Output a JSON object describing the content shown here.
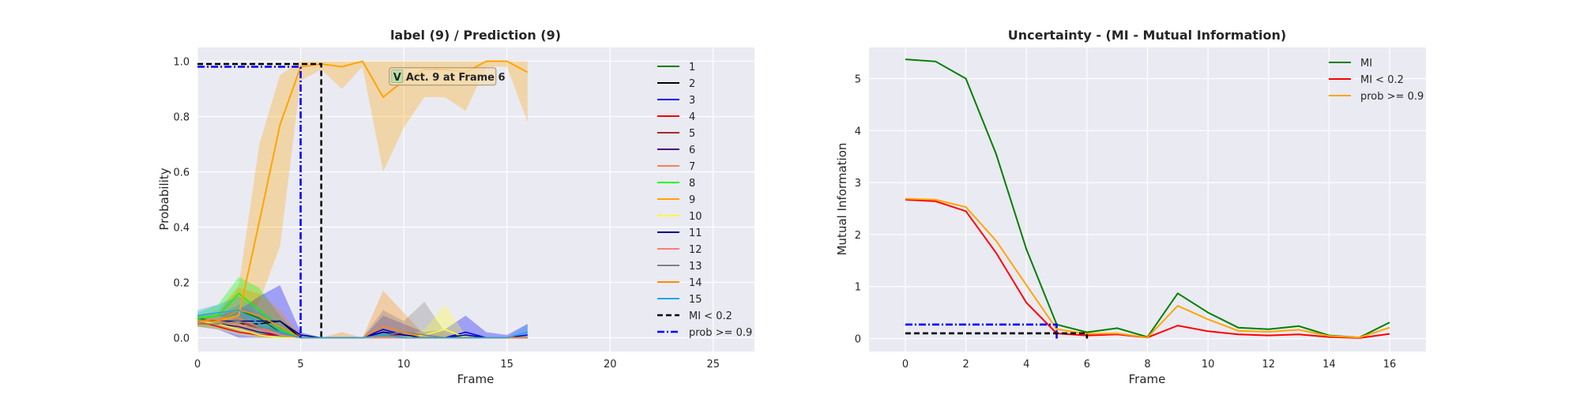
{
  "chart_data": [
    {
      "type": "line",
      "title": "label (9) / Prediction (9)",
      "xlabel": "Frame",
      "ylabel": "Probability",
      "xlim": [
        0,
        27
      ],
      "ylim": [
        -0.05,
        1.05
      ],
      "xticks": [
        "0",
        "5",
        "10",
        "15",
        "20",
        "25"
      ],
      "yticks": [
        "0.0",
        "0.2",
        "0.4",
        "0.6",
        "0.8",
        "1.0"
      ],
      "grid": true,
      "legend": "right",
      "annotation": {
        "badge": "V",
        "text": "Act. 9 at Frame 6",
        "x": 9.3,
        "y": 0.945
      },
      "x": [
        0,
        1,
        2,
        3,
        4,
        5,
        6,
        7,
        8,
        9,
        10,
        11,
        12,
        13,
        14,
        15,
        16
      ],
      "series": [
        {
          "name": "1",
          "color": "#008000",
          "values": [
            0.07,
            0.06,
            0.1,
            0.07,
            0.02,
            0.0,
            0.0,
            0.0,
            0.0,
            0.01,
            0.0,
            0.0,
            0.0,
            0.0,
            0.0,
            0.0,
            0.0
          ]
        },
        {
          "name": "2",
          "color": "#000000",
          "values": [
            0.06,
            0.06,
            0.05,
            0.05,
            0.06,
            0.0,
            0.0,
            0.0,
            0.0,
            0.02,
            0.01,
            0.0,
            0.0,
            0.0,
            0.0,
            0.0,
            0.0
          ]
        },
        {
          "name": "3",
          "color": "#0000ff",
          "values": [
            0.06,
            0.05,
            0.03,
            0.01,
            0.01,
            0.0,
            0.0,
            0.0,
            0.0,
            0.03,
            0.01,
            0.0,
            0.0,
            0.02,
            0.0,
            0.0,
            0.01
          ]
        },
        {
          "name": "4",
          "color": "#ff0000",
          "values": [
            0.06,
            0.04,
            0.02,
            0.01,
            0.01,
            0.0,
            0.0,
            0.0,
            0.0,
            0.0,
            0.0,
            0.0,
            0.0,
            0.0,
            0.0,
            0.0,
            0.0
          ]
        },
        {
          "name": "5",
          "color": "#a52a2a",
          "values": [
            0.06,
            0.05,
            0.06,
            0.03,
            0.01,
            0.0,
            0.0,
            0.0,
            0.0,
            0.01,
            0.01,
            0.0,
            0.0,
            0.0,
            0.0,
            0.0,
            0.0
          ]
        },
        {
          "name": "6",
          "color": "#4b0082",
          "values": [
            0.06,
            0.05,
            0.04,
            0.02,
            0.01,
            0.0,
            0.0,
            0.0,
            0.0,
            0.0,
            0.0,
            0.0,
            0.0,
            0.0,
            0.0,
            0.0,
            0.0
          ]
        },
        {
          "name": "7",
          "color": "#ff7f50",
          "values": [
            0.06,
            0.07,
            0.07,
            0.04,
            0.01,
            0.0,
            0.0,
            0.0,
            0.0,
            0.0,
            0.0,
            0.0,
            0.0,
            0.0,
            0.0,
            0.0,
            0.0
          ]
        },
        {
          "name": "8",
          "color": "#00ff00",
          "values": [
            0.07,
            0.08,
            0.16,
            0.1,
            0.03,
            0.0,
            0.0,
            0.0,
            0.0,
            0.01,
            0.0,
            0.0,
            0.0,
            0.0,
            0.0,
            0.0,
            0.0
          ]
        },
        {
          "name": "9",
          "color": "#ffa500",
          "values": [
            0.06,
            0.06,
            0.08,
            0.42,
            0.77,
            0.98,
            0.99,
            0.98,
            1.0,
            0.87,
            0.93,
            0.97,
            0.97,
            0.96,
            1.0,
            1.0,
            0.96
          ]
        },
        {
          "name": "10",
          "color": "#ffff33",
          "values": [
            0.06,
            0.05,
            0.03,
            0.01,
            0.0,
            0.0,
            0.0,
            0.0,
            0.0,
            0.0,
            0.0,
            0.01,
            0.03,
            0.0,
            0.0,
            0.0,
            0.0
          ]
        },
        {
          "name": "11",
          "color": "#00008b",
          "values": [
            0.06,
            0.06,
            0.06,
            0.06,
            0.06,
            0.01,
            0.0,
            0.0,
            0.0,
            0.02,
            0.01,
            0.0,
            0.0,
            0.01,
            0.0,
            0.0,
            0.0
          ]
        },
        {
          "name": "12",
          "color": "#fa8072",
          "values": [
            0.06,
            0.06,
            0.05,
            0.03,
            0.01,
            0.0,
            0.0,
            0.0,
            0.0,
            0.0,
            0.0,
            0.0,
            0.0,
            0.0,
            0.0,
            0.0,
            0.0
          ]
        },
        {
          "name": "13",
          "color": "#808080",
          "values": [
            0.05,
            0.05,
            0.06,
            0.04,
            0.02,
            0.0,
            0.0,
            0.0,
            0.0,
            0.01,
            0.02,
            0.01,
            0.0,
            0.0,
            0.0,
            0.0,
            0.0
          ]
        },
        {
          "name": "14",
          "color": "#ff8c00",
          "values": [
            0.06,
            0.06,
            0.1,
            0.08,
            0.04,
            0.0,
            0.0,
            0.0,
            0.0,
            0.04,
            0.02,
            0.0,
            0.0,
            0.0,
            0.0,
            0.0,
            0.0
          ]
        },
        {
          "name": "15",
          "color": "#1ea7e6",
          "values": [
            0.08,
            0.09,
            0.1,
            0.05,
            0.02,
            0.0,
            0.0,
            0.0,
            0.0,
            0.01,
            0.0,
            0.0,
            0.0,
            0.0,
            0.0,
            0.0,
            0.02
          ]
        }
      ],
      "bands": [
        {
          "series": "9",
          "lower": [
            0.04,
            0.04,
            0.02,
            0.13,
            0.33,
            0.93,
            0.97,
            0.9,
            0.98,
            0.6,
            0.76,
            0.87,
            0.87,
            0.82,
            0.98,
            0.98,
            0.78
          ],
          "upper": [
            0.08,
            0.1,
            0.19,
            0.7,
            0.95,
            1.0,
            1.0,
            1.0,
            1.0,
            1.0,
            1.0,
            1.0,
            1.0,
            1.0,
            1.0,
            1.0,
            1.0
          ]
        },
        {
          "series": "8",
          "lower": [
            0.05,
            0.04,
            0.05,
            0.02,
            0.0,
            0.0,
            0.0,
            0.0,
            0.0,
            0.0,
            0.0,
            0.0,
            0.0,
            0.0,
            0.0,
            0.0,
            0.0
          ],
          "upper": [
            0.09,
            0.12,
            0.22,
            0.18,
            0.08,
            0.0,
            0.0,
            0.0,
            0.0,
            0.02,
            0.0,
            0.0,
            0.0,
            0.0,
            0.0,
            0.0,
            0.0
          ]
        },
        {
          "series": "3",
          "lower": [
            0.04,
            0.03,
            0.0,
            0.0,
            0.0,
            0.0,
            0.0,
            0.0,
            0.0,
            0.0,
            0.0,
            0.0,
            0.0,
            0.0,
            0.0,
            0.0,
            0.0
          ],
          "upper": [
            0.08,
            0.08,
            0.1,
            0.15,
            0.19,
            0.02,
            0.0,
            0.0,
            0.0,
            0.08,
            0.05,
            0.02,
            0.03,
            0.08,
            0.02,
            0.01,
            0.05
          ]
        },
        {
          "series": "14",
          "lower": [
            0.04,
            0.04,
            0.04,
            0.0,
            0.0,
            0.0,
            0.0,
            0.0,
            0.0,
            0.0,
            0.0,
            0.0,
            0.0,
            0.0,
            0.0,
            0.0,
            0.0
          ],
          "upper": [
            0.08,
            0.09,
            0.18,
            0.16,
            0.1,
            0.01,
            0.0,
            0.02,
            0.0,
            0.17,
            0.09,
            0.01,
            0.01,
            0.01,
            0.0,
            0.0,
            0.0
          ]
        },
        {
          "series": "13",
          "lower": [
            0.04,
            0.03,
            0.02,
            0.0,
            0.0,
            0.0,
            0.0,
            0.0,
            0.0,
            0.0,
            0.0,
            0.0,
            0.0,
            0.0,
            0.0,
            0.0,
            0.0
          ],
          "upper": [
            0.07,
            0.08,
            0.12,
            0.09,
            0.05,
            0.0,
            0.0,
            0.0,
            0.0,
            0.1,
            0.06,
            0.13,
            0.02,
            0.0,
            0.0,
            0.0,
            0.0
          ]
        },
        {
          "series": "10",
          "lower": [
            0.04,
            0.03,
            0.01,
            0.0,
            0.0,
            0.0,
            0.0,
            0.0,
            0.0,
            0.0,
            0.0,
            0.0,
            0.0,
            0.0,
            0.0,
            0.0,
            0.0
          ],
          "upper": [
            0.08,
            0.08,
            0.06,
            0.03,
            0.01,
            0.0,
            0.0,
            0.0,
            0.0,
            0.0,
            0.0,
            0.03,
            0.12,
            0.01,
            0.0,
            0.0,
            0.0
          ]
        },
        {
          "series": "15",
          "lower": [
            0.06,
            0.06,
            0.05,
            0.01,
            0.0,
            0.0,
            0.0,
            0.0,
            0.0,
            0.0,
            0.0,
            0.0,
            0.0,
            0.0,
            0.0,
            0.0,
            0.0
          ],
          "upper": [
            0.1,
            0.12,
            0.15,
            0.1,
            0.05,
            0.0,
            0.0,
            0.0,
            0.0,
            0.02,
            0.0,
            0.0,
            0.0,
            0.0,
            0.0,
            0.0,
            0.05
          ]
        }
      ],
      "reference_lines": [
        {
          "name": "MI < 0.2",
          "color": "#000000",
          "style": "dashed",
          "x": 6,
          "y": 0.99,
          "x_start": 0
        },
        {
          "name": "prob >= 0.9",
          "color": "#0000ff",
          "style": "dashdot",
          "x": 5,
          "y": 0.98,
          "x_start": 0
        }
      ]
    },
    {
      "type": "line",
      "title": "Uncertainty - (MI - Mutual Information)",
      "xlabel": "Frame",
      "ylabel": "Mutual Information",
      "xlim": [
        -1.2,
        17.2
      ],
      "ylim": [
        -0.25,
        5.6
      ],
      "xticks": [
        "0",
        "2",
        "4",
        "6",
        "8",
        "10",
        "12",
        "14",
        "16"
      ],
      "yticks": [
        "0",
        "1",
        "2",
        "3",
        "4",
        "5"
      ],
      "grid": true,
      "legend": "top-right",
      "x": [
        0,
        1,
        2,
        3,
        4,
        5,
        6,
        7,
        8,
        9,
        10,
        11,
        12,
        13,
        14,
        15,
        16
      ],
      "series": [
        {
          "name": "MI",
          "color": "#008000",
          "values": [
            5.37,
            5.33,
            5.0,
            3.55,
            1.72,
            0.27,
            0.12,
            0.2,
            0.03,
            0.87,
            0.5,
            0.21,
            0.18,
            0.24,
            0.06,
            0.02,
            0.31
          ]
        },
        {
          "name": "MI < 0.2",
          "color": "#ff0000",
          "values": [
            2.67,
            2.64,
            2.45,
            1.65,
            0.69,
            0.1,
            0.06,
            0.08,
            0.02,
            0.25,
            0.14,
            0.08,
            0.06,
            0.08,
            0.03,
            0.01,
            0.09
          ]
        },
        {
          "name": "prob >= 0.9",
          "color": "#ffa500",
          "values": [
            2.69,
            2.67,
            2.53,
            1.88,
            1.03,
            0.18,
            0.09,
            0.1,
            0.02,
            0.63,
            0.37,
            0.15,
            0.13,
            0.17,
            0.05,
            0.02,
            0.21
          ]
        }
      ],
      "reference_lines": [
        {
          "color": "#000000",
          "style": "dashed",
          "y": 0.1,
          "x_start": 0,
          "x_end": 6
        },
        {
          "color": "#0000ff",
          "style": "dashdot",
          "y": 0.27,
          "x_start": 0,
          "x_end": 5
        }
      ]
    }
  ]
}
